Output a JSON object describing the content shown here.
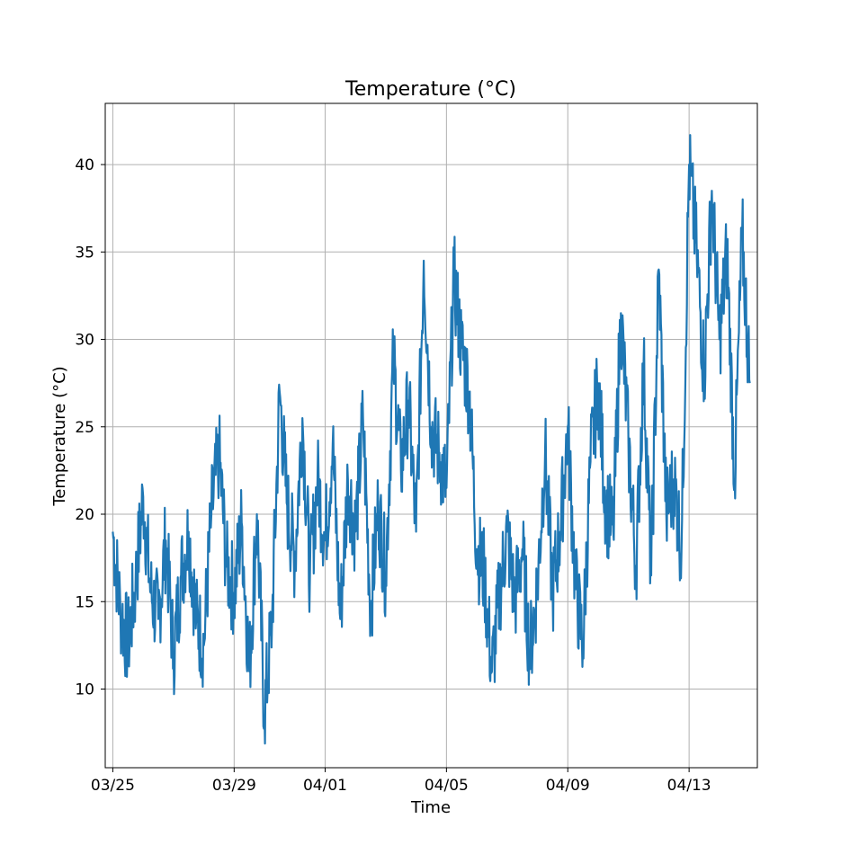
{
  "chart_data": {
    "type": "line",
    "title": "Temperature (°C)",
    "xlabel": "Time",
    "ylabel": "Temperature (°C)",
    "xlim": [
      "03/24 18:00",
      "04/15 06:00"
    ],
    "ylim": [
      5.5,
      43.5
    ],
    "x_ticks": [
      {
        "label": "03/25",
        "date": "03/25"
      },
      {
        "label": "03/29",
        "date": "03/29"
      },
      {
        "label": "04/01",
        "date": "04/01"
      },
      {
        "label": "04/05",
        "date": "04/05"
      },
      {
        "label": "04/09",
        "date": "04/09"
      },
      {
        "label": "04/13",
        "date": "04/13"
      }
    ],
    "y_ticks": [
      10,
      15,
      20,
      25,
      30,
      35,
      40
    ],
    "grid": true,
    "series": [
      {
        "color": "#1f77b4",
        "x": [
          "03/25 00:00",
          "03/25 06:00",
          "03/25 12:00",
          "03/25 18:00",
          "03/26 00:00",
          "03/26 06:00",
          "03/26 12:00",
          "03/26 18:00",
          "03/27 00:00",
          "03/27 06:00",
          "03/27 12:00",
          "03/27 18:00",
          "03/28 00:00",
          "03/28 06:00",
          "03/28 12:00",
          "03/28 18:00",
          "03/29 00:00",
          "03/29 06:00",
          "03/29 12:00",
          "03/29 18:00",
          "03/30 00:00",
          "03/30 06:00",
          "03/30 12:00",
          "03/30 18:00",
          "03/31 00:00",
          "03/31 06:00",
          "03/31 12:00",
          "03/31 18:00",
          "04/01 00:00",
          "04/01 06:00",
          "04/01 12:00",
          "04/01 18:00",
          "04/02 00:00",
          "04/02 06:00",
          "04/02 12:00",
          "04/02 18:00",
          "04/03 00:00",
          "04/03 06:00",
          "04/03 12:00",
          "04/03 18:00",
          "04/04 00:00",
          "04/04 06:00",
          "04/04 12:00",
          "04/04 18:00",
          "04/05 00:00",
          "04/05 06:00",
          "04/05 12:00",
          "04/05 18:00",
          "04/06 00:00",
          "04/06 06:00",
          "04/06 12:00",
          "04/06 18:00",
          "04/07 00:00",
          "04/07 06:00",
          "04/07 12:00",
          "04/07 18:00",
          "04/08 00:00",
          "04/08 06:00",
          "04/08 12:00",
          "04/08 18:00",
          "04/09 00:00",
          "04/09 06:00",
          "04/09 12:00",
          "04/09 18:00",
          "04/10 00:00",
          "04/10 06:00",
          "04/10 12:00",
          "04/10 18:00",
          "04/11 00:00",
          "04/11 06:00",
          "04/11 12:00",
          "04/11 18:00",
          "04/12 00:00",
          "04/12 06:00",
          "04/12 12:00",
          "04/12 18:00",
          "04/13 00:00",
          "04/13 06:00",
          "04/13 12:00",
          "04/13 18:00",
          "04/14 00:00",
          "04/14 06:00",
          "04/14 12:00",
          "04/14 18:00",
          "04/15 00:00"
        ],
        "y": [
          19.0,
          14.5,
          12.5,
          16.0,
          21.0,
          15.5,
          14.0,
          18.5,
          12.0,
          16.5,
          19.0,
          14.0,
          12.5,
          20.0,
          23.5,
          17.0,
          15.5,
          19.5,
          11.0,
          20.0,
          8.5,
          14.0,
          27.0,
          20.5,
          17.5,
          25.5,
          16.5,
          22.0,
          18.5,
          24.0,
          14.0,
          22.0,
          19.0,
          25.5,
          14.5,
          20.5,
          16.5,
          29.0,
          22.5,
          26.5,
          19.0,
          34.5,
          25.0,
          23.5,
          21.5,
          33.5,
          29.5,
          27.0,
          18.0,
          16.5,
          11.0,
          15.5,
          19.0,
          15.0,
          18.0,
          12.0,
          16.0,
          23.5,
          15.5,
          19.0,
          25.0,
          16.0,
          12.5,
          23.0,
          27.5,
          20.5,
          19.0,
          31.5,
          24.0,
          17.0,
          28.5,
          16.5,
          34.0,
          20.0,
          22.0,
          18.0,
          40.0,
          35.0,
          28.0,
          38.5,
          30.0,
          35.0,
          22.0,
          36.0,
          27.5
        ]
      }
    ]
  }
}
